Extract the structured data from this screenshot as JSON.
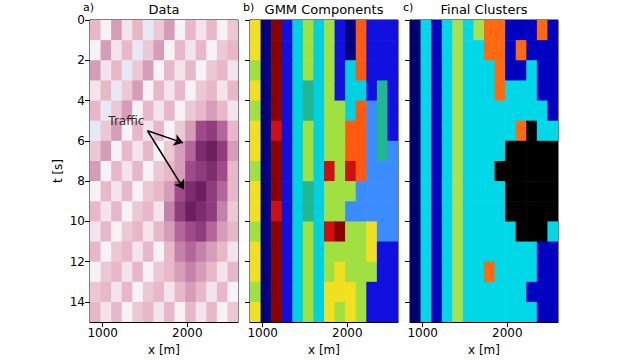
{
  "chart_data": [
    {
      "type": "heatmap",
      "panel_label": "a)",
      "title": "Data",
      "xlabel": "x [m]",
      "ylabel": "t [s]",
      "xlim": [
        850,
        2600
      ],
      "ylim": [
        0,
        15
      ],
      "xticks": [
        1000,
        2000
      ],
      "yticks": [
        0,
        2,
        4,
        6,
        8,
        10,
        12,
        14
      ],
      "tick_labels": true,
      "clim": [
        -1,
        1
      ],
      "x_edges": [
        850,
        975,
        1100,
        1225,
        1350,
        1475,
        1600,
        1725,
        1850,
        1975,
        2100,
        2225,
        2350,
        2475,
        2600
      ],
      "t_edges": [
        0,
        1,
        2,
        3,
        4,
        5,
        6,
        7,
        8,
        9,
        10,
        11,
        12,
        13,
        14,
        15
      ],
      "cells": [
        [
          0.2,
          -0.2,
          0.3,
          -0.1,
          0.2,
          -0.3,
          0.1,
          0.3,
          -0.2,
          0.2,
          -0.1,
          0.2,
          -0.2,
          0.1
        ],
        [
          -0.2,
          0.3,
          -0.1,
          0.2,
          -0.3,
          0.1,
          0.3,
          -0.2,
          0.2,
          -0.1,
          0.2,
          -0.2,
          0.1,
          0.2
        ],
        [
          0.3,
          -0.1,
          0.2,
          -0.3,
          0.1,
          0.3,
          -0.2,
          0.2,
          -0.1,
          0.2,
          -0.2,
          0.1,
          0.2,
          -0.1
        ],
        [
          -0.1,
          0.2,
          -0.3,
          0.1,
          0.3,
          -0.2,
          0.2,
          -0.1,
          0.2,
          -0.2,
          0.1,
          0.2,
          -0.1,
          0.2
        ],
        [
          0.2,
          -0.3,
          0.1,
          0.3,
          -0.2,
          0.2,
          -0.1,
          0.2,
          -0.2,
          0.1,
          0.2,
          0.3,
          0.2,
          -0.1
        ],
        [
          -0.3,
          0.1,
          0.3,
          -0.2,
          0.2,
          -0.1,
          0.2,
          -0.2,
          0.1,
          0.3,
          0.6,
          0.7,
          0.5,
          0.2
        ],
        [
          0.1,
          0.3,
          -0.2,
          0.2,
          -0.1,
          0.2,
          -0.2,
          0.1,
          0.3,
          0.5,
          0.8,
          0.9,
          0.7,
          0.3
        ],
        [
          0.3,
          -0.2,
          0.2,
          -0.1,
          0.2,
          -0.2,
          0.1,
          0.2,
          0.3,
          0.6,
          0.7,
          0.8,
          0.6,
          0.2
        ],
        [
          -0.2,
          0.2,
          -0.1,
          0.2,
          -0.2,
          0.1,
          0.2,
          0.3,
          0.6,
          0.8,
          0.9,
          0.7,
          0.5,
          0.2
        ],
        [
          0.2,
          -0.1,
          0.2,
          -0.2,
          0.1,
          0.2,
          -0.1,
          0.4,
          0.7,
          0.9,
          0.8,
          0.7,
          0.4,
          0.1
        ],
        [
          -0.1,
          0.2,
          -0.2,
          0.1,
          0.2,
          -0.1,
          0.2,
          0.3,
          0.5,
          0.6,
          0.7,
          0.5,
          0.3,
          0.2
        ],
        [
          0.2,
          -0.2,
          0.1,
          0.2,
          -0.1,
          0.2,
          -0.2,
          0.2,
          0.4,
          0.5,
          0.4,
          0.3,
          0.2,
          -0.1
        ],
        [
          -0.2,
          0.1,
          0.2,
          -0.1,
          0.2,
          -0.2,
          0.1,
          0.2,
          0.3,
          0.4,
          0.3,
          0.2,
          -0.1,
          0.2
        ],
        [
          0.1,
          0.2,
          -0.1,
          0.2,
          -0.2,
          0.1,
          0.2,
          -0.1,
          0.2,
          0.3,
          0.2,
          -0.1,
          0.2,
          -0.2
        ],
        [
          0.2,
          -0.1,
          0.2,
          -0.2,
          0.1,
          0.2,
          -0.1,
          0.2,
          -0.2,
          0.2,
          -0.1,
          0.2,
          -0.2,
          0.1
        ]
      ],
      "annotations": [
        {
          "text": "Traffic",
          "x": 1280,
          "t": 5.0,
          "arrow_from": [
            1530,
            5.5
          ],
          "arrow_to": [
            [
              1950,
              6.1
            ],
            [
              1960,
              8.4
            ]
          ]
        }
      ]
    },
    {
      "type": "heatmap",
      "panel_label": "b)",
      "title": "GMM Components",
      "xlabel": "x [m]",
      "xlim": [
        850,
        2600
      ],
      "ylim": [
        0,
        15
      ],
      "xticks": [
        1000,
        2000
      ],
      "yticks": [
        0,
        2,
        4,
        6,
        8,
        10,
        12,
        14
      ],
      "tick_labels": "x",
      "colors": [
        "#1010e0",
        "#000080",
        "#00d0e0",
        "#3a8cff",
        "#a0e040",
        "#f0e020",
        "#d01010",
        "#8b0000",
        "#ff5a10",
        "#20b890"
      ],
      "x_edges": [
        850,
        975,
        1100,
        1225,
        1350,
        1475,
        1600,
        1725,
        1850,
        1975,
        2100,
        2225,
        2350,
        2475,
        2600
      ],
      "t_edges": [
        0,
        1,
        2,
        3,
        4,
        5,
        6,
        7,
        8,
        9,
        10,
        11,
        12,
        13,
        14,
        15
      ],
      "cells": [
        [
          5,
          1,
          7,
          0,
          2,
          4,
          2,
          4,
          0,
          1,
          8,
          0,
          0,
          0
        ],
        [
          5,
          1,
          7,
          0,
          2,
          4,
          2,
          4,
          0,
          1,
          8,
          0,
          0,
          0
        ],
        [
          4,
          1,
          7,
          0,
          2,
          4,
          2,
          4,
          0,
          2,
          8,
          0,
          0,
          0
        ],
        [
          5,
          1,
          7,
          0,
          2,
          9,
          2,
          4,
          0,
          2,
          2,
          0,
          9,
          0
        ],
        [
          4,
          1,
          7,
          0,
          2,
          9,
          2,
          4,
          4,
          2,
          8,
          3,
          9,
          0
        ],
        [
          5,
          1,
          6,
          0,
          2,
          4,
          2,
          4,
          4,
          8,
          8,
          3,
          9,
          0
        ],
        [
          5,
          1,
          7,
          0,
          2,
          4,
          2,
          4,
          4,
          8,
          8,
          3,
          9,
          3
        ],
        [
          4,
          1,
          7,
          0,
          2,
          4,
          2,
          6,
          4,
          6,
          8,
          3,
          3,
          3
        ],
        [
          5,
          1,
          7,
          0,
          2,
          9,
          2,
          4,
          4,
          4,
          3,
          3,
          3,
          3
        ],
        [
          5,
          1,
          6,
          0,
          2,
          9,
          2,
          4,
          4,
          3,
          3,
          3,
          3,
          3
        ],
        [
          4,
          1,
          7,
          0,
          2,
          4,
          2,
          6,
          7,
          4,
          4,
          5,
          3,
          3
        ],
        [
          5,
          1,
          7,
          0,
          2,
          4,
          2,
          4,
          4,
          4,
          4,
          5,
          0,
          0
        ],
        [
          5,
          1,
          7,
          0,
          2,
          4,
          2,
          4,
          5,
          4,
          4,
          4,
          0,
          0
        ],
        [
          4,
          1,
          7,
          0,
          2,
          4,
          2,
          5,
          5,
          5,
          4,
          0,
          0,
          0
        ],
        [
          5,
          1,
          7,
          0,
          2,
          4,
          2,
          5,
          4,
          5,
          4,
          0,
          0,
          0
        ]
      ]
    },
    {
      "type": "heatmap",
      "panel_label": "c)",
      "title": "Final Clusters",
      "xlabel": "x [m]",
      "xlim": [
        850,
        2600
      ],
      "ylim": [
        0,
        15
      ],
      "xticks": [
        1000,
        2000
      ],
      "yticks": [
        0,
        2,
        4,
        6,
        8,
        10,
        12,
        14
      ],
      "tick_labels": "x",
      "colors": [
        "#0000c0",
        "#00d8e8",
        "#a8e050",
        "#ff6a10",
        "#000000",
        "#f0e020",
        "#000070"
      ],
      "x_edges": [
        850,
        975,
        1100,
        1225,
        1350,
        1475,
        1600,
        1725,
        1850,
        1975,
        2100,
        2225,
        2350,
        2475,
        2600
      ],
      "t_edges": [
        0,
        1,
        2,
        3,
        4,
        5,
        6,
        7,
        8,
        9,
        10,
        11,
        12,
        13,
        14,
        15
      ],
      "cells": [
        [
          6,
          1,
          0,
          1,
          2,
          1,
          2,
          3,
          3,
          0,
          0,
          0,
          3,
          0
        ],
        [
          6,
          1,
          0,
          1,
          2,
          1,
          1,
          3,
          3,
          0,
          3,
          0,
          0,
          0
        ],
        [
          6,
          1,
          0,
          1,
          2,
          1,
          1,
          1,
          3,
          0,
          0,
          1,
          0,
          0
        ],
        [
          6,
          1,
          0,
          1,
          2,
          1,
          1,
          1,
          3,
          1,
          1,
          1,
          0,
          0
        ],
        [
          6,
          1,
          0,
          1,
          2,
          1,
          1,
          1,
          1,
          1,
          1,
          1,
          1,
          0
        ],
        [
          6,
          1,
          0,
          1,
          2,
          1,
          1,
          1,
          1,
          1,
          3,
          4,
          1,
          1
        ],
        [
          6,
          1,
          0,
          1,
          2,
          1,
          1,
          1,
          1,
          4,
          4,
          4,
          4,
          4
        ],
        [
          6,
          1,
          0,
          1,
          2,
          1,
          1,
          1,
          4,
          4,
          4,
          4,
          4,
          4
        ],
        [
          6,
          1,
          0,
          1,
          2,
          1,
          1,
          1,
          1,
          4,
          4,
          4,
          4,
          4
        ],
        [
          6,
          1,
          0,
          1,
          2,
          1,
          1,
          1,
          1,
          4,
          4,
          4,
          4,
          4
        ],
        [
          6,
          1,
          0,
          1,
          2,
          1,
          1,
          1,
          1,
          1,
          4,
          4,
          4,
          1
        ],
        [
          6,
          1,
          0,
          1,
          2,
          1,
          1,
          1,
          1,
          1,
          1,
          1,
          0,
          0
        ],
        [
          6,
          1,
          0,
          1,
          2,
          1,
          1,
          3,
          1,
          1,
          1,
          1,
          0,
          0
        ],
        [
          6,
          1,
          0,
          1,
          2,
          1,
          1,
          1,
          1,
          1,
          1,
          0,
          0,
          0
        ],
        [
          6,
          1,
          0,
          1,
          2,
          1,
          1,
          1,
          1,
          1,
          1,
          1,
          0,
          0
        ]
      ]
    }
  ]
}
